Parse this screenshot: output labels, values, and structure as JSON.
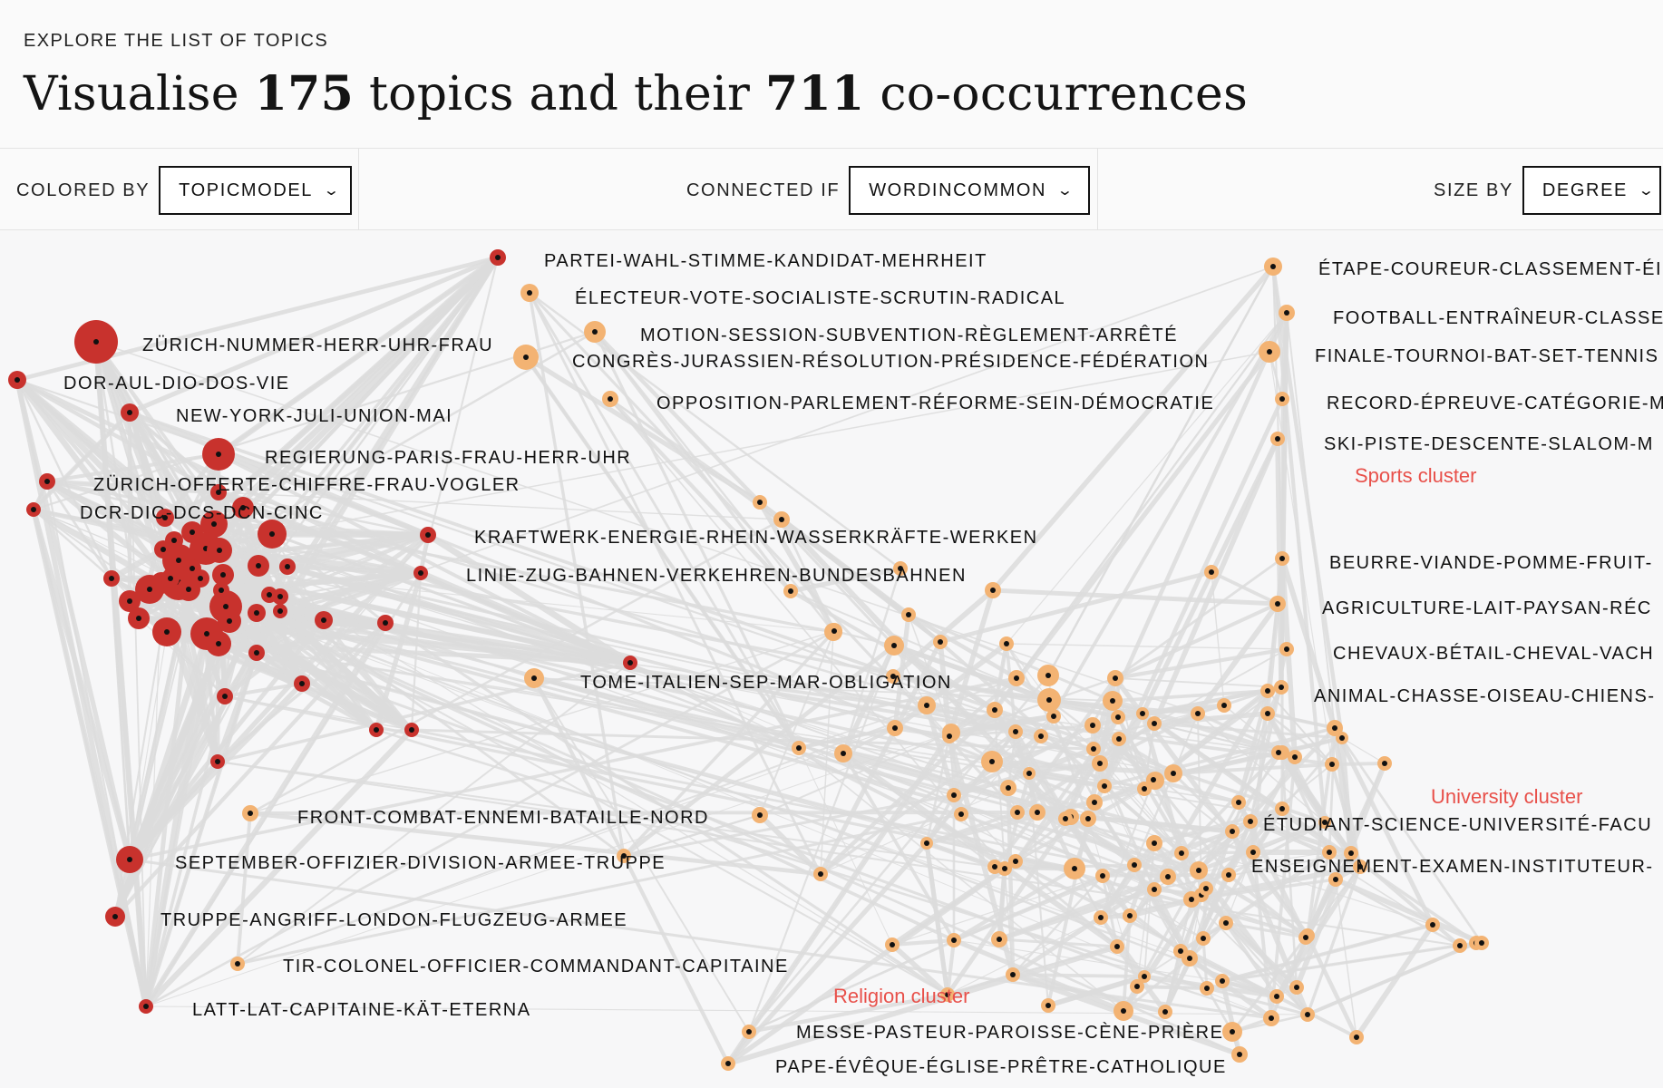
{
  "header": {
    "kicker": "EXPLORE THE LIST OF TOPICS",
    "title_pre": "Visualise ",
    "topic_count": "175",
    "title_mid": " topics and their ",
    "cooc_count": "711",
    "title_post": " co-occurrences"
  },
  "controls": {
    "colored_by_label": "COLORED BY",
    "colored_by_value": "TOPICMODEL",
    "connected_if_label": "CONNECTED IF",
    "connected_if_value": "WORDINCOMMON",
    "size_by_label": "SIZE BY",
    "size_by_value": "DEGREE",
    "chevron_icon": "chevron-down-icon"
  },
  "colors": {
    "red_node": "#c8322d",
    "orange_node": "#f3b373",
    "edge": "#dcdcdc",
    "cluster_label": "#e8504a",
    "node_center": "#111111"
  },
  "labels": [
    {
      "text": "PARTEI-WAHL-STIMME-KANDIDAT-MEHRHEIT"
    },
    {
      "text": "ÉLECTEUR-VOTE-SOCIALISTE-SCRUTIN-RADICAL"
    },
    {
      "text": "MOTION-SESSION-SUBVENTION-RÈGLEMENT-ARRÊTÉ"
    },
    {
      "text": "CONGRÈS-JURASSIEN-RÉSOLUTION-PRÉSIDENCE-FÉDÉRATION"
    },
    {
      "text": "OPPOSITION-PARLEMENT-RÉFORME-SEIN-DÉMOCRATIE"
    },
    {
      "text": "ZÜRICH-NUMMER-HERR-UHR-FRAU"
    },
    {
      "text": "DOR-AUL-DIO-DOS-VIE"
    },
    {
      "text": "NEW-YORK-JULI-UNION-MAI"
    },
    {
      "text": "REGIERUNG-PARIS-FRAU-HERR-UHR"
    },
    {
      "text": "ZÜRICH-OFFERTE-CHIFFRE-FRAU-VOGLER"
    },
    {
      "text": "DCR-DIC-DCS-DCN-CINC"
    },
    {
      "text": "KRAFTWERK-ENERGIE-RHEIN-WASSERKRÄFTE-WERKEN"
    },
    {
      "text": "LINIE-ZUG-BAHNEN-VERKEHREN-BUNDESBAHNEN"
    },
    {
      "text": "TOME-ITALIEN-SEP-MAR-OBLIGATION"
    },
    {
      "text": "FRONT-COMBAT-ENNEMI-BATAILLE-NORD"
    },
    {
      "text": "SEPTEMBER-OFFIZIER-DIVISION-ARMEE-TRUPPE"
    },
    {
      "text": "TRUPPE-ANGRIFF-LONDON-FLUGZEUG-ARMEE"
    },
    {
      "text": "TIR-COLONEL-OFFICIER-COMMANDANT-CAPITAINE"
    },
    {
      "text": "LATT-LAT-CAPITAINE-KÄT-ETERNA"
    },
    {
      "text": "MESSE-PASTEUR-PAROISSE-CÈNE-PRIÈRE"
    },
    {
      "text": "PAPE-ÉVÊQUE-ÉGLISE-PRÊTRE-CATHOLIQUE"
    },
    {
      "text": "ÉTAPE-COUREUR-CLASSEMENT-ÉI"
    },
    {
      "text": "FOOTBALL-ENTRAÎNEUR-CLASSE"
    },
    {
      "text": "FINALE-TOURNOI-BAT-SET-TENNIS"
    },
    {
      "text": "RECORD-ÉPREUVE-CATÉGORIE-M"
    },
    {
      "text": "SKI-PISTE-DESCENTE-SLALOM-M"
    },
    {
      "text": "BEURRE-VIANDE-POMME-FRUIT-"
    },
    {
      "text": "AGRICULTURE-LAIT-PAYSAN-RÉC"
    },
    {
      "text": "CHEVAUX-BÉTAIL-CHEVAL-VACH"
    },
    {
      "text": "ANIMAL-CHASSE-OISEAU-CHIENS-"
    },
    {
      "text": "ÉTUDIANT-SCIENCE-UNIVERSITÉ-FACU"
    },
    {
      "text": "ENSEIGNEMENT-EXAMEN-INSTITUTEUR-"
    }
  ],
  "clusters": [
    {
      "text": "Sports cluster"
    },
    {
      "text": "University cluster"
    },
    {
      "text": "Religion cluster"
    }
  ]
}
